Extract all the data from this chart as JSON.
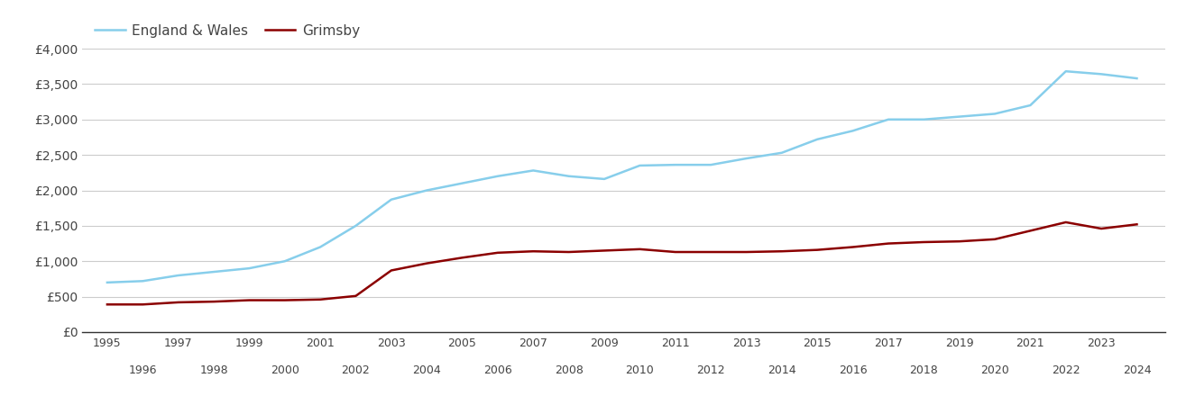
{
  "grimsby_years": [
    1995,
    1996,
    1997,
    1998,
    1999,
    2000,
    2001,
    2002,
    2003,
    2004,
    2005,
    2006,
    2007,
    2008,
    2009,
    2010,
    2011,
    2012,
    2013,
    2014,
    2015,
    2016,
    2017,
    2018,
    2019,
    2020,
    2021,
    2022,
    2023,
    2024
  ],
  "grimsby_values": [
    390,
    390,
    420,
    430,
    450,
    450,
    460,
    510,
    870,
    970,
    1050,
    1120,
    1140,
    1130,
    1150,
    1170,
    1130,
    1130,
    1130,
    1140,
    1160,
    1200,
    1250,
    1270,
    1280,
    1310,
    1430,
    1550,
    1460,
    1520
  ],
  "ew_years": [
    1995,
    1996,
    1997,
    1998,
    1999,
    2000,
    2001,
    2002,
    2003,
    2004,
    2005,
    2006,
    2007,
    2008,
    2009,
    2010,
    2011,
    2012,
    2013,
    2014,
    2015,
    2016,
    2017,
    2018,
    2019,
    2020,
    2021,
    2022,
    2023,
    2024
  ],
  "ew_values": [
    700,
    720,
    800,
    850,
    900,
    1000,
    1200,
    1500,
    1870,
    2000,
    2100,
    2200,
    2280,
    2200,
    2160,
    2350,
    2360,
    2360,
    2450,
    2530,
    2720,
    2840,
    3000,
    3000,
    3040,
    3080,
    3200,
    3680,
    3640,
    3580
  ],
  "grimsby_color": "#8B0000",
  "ew_color": "#87CEEB",
  "grimsby_label": "Grimsby",
  "ew_label": "England & Wales",
  "ylim": [
    0,
    4000
  ],
  "yticks": [
    0,
    500,
    1000,
    1500,
    2000,
    2500,
    3000,
    3500,
    4000
  ],
  "ytick_labels": [
    "£0",
    "£500",
    "£1,000",
    "£1,500",
    "£2,000",
    "£2,500",
    "£3,000",
    "£3,500",
    "£4,000"
  ],
  "background_color": "#ffffff",
  "grid_color": "#cccccc",
  "line_width": 1.8,
  "odd_years": [
    1995,
    1997,
    1999,
    2001,
    2003,
    2005,
    2007,
    2009,
    2011,
    2013,
    2015,
    2017,
    2019,
    2021,
    2023
  ],
  "even_years": [
    1996,
    1998,
    2000,
    2002,
    2004,
    2006,
    2008,
    2010,
    2012,
    2014,
    2016,
    2018,
    2020,
    2022,
    2024
  ]
}
